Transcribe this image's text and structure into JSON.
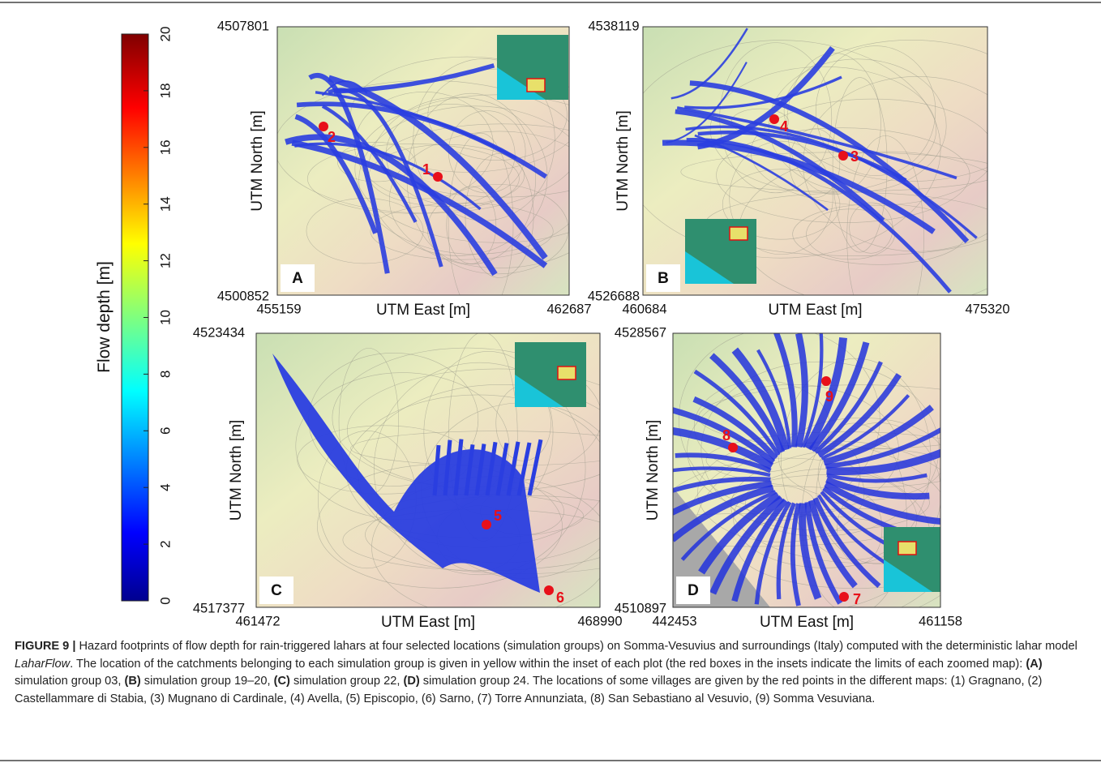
{
  "colorbar": {
    "label": "Flow depth [m]",
    "lim": [
      0,
      20
    ],
    "ticks": [
      0,
      2,
      4,
      6,
      8,
      10,
      12,
      14,
      16,
      18,
      20
    ]
  },
  "panels": [
    {
      "letter": "A",
      "x_label": "UTM East [m]",
      "y_label": "UTM North [m]",
      "x_min": 455159,
      "x_max": 462687,
      "y_min": 4500852,
      "y_max": 4507801,
      "points": [
        "1",
        "2"
      ]
    },
    {
      "letter": "B",
      "x_label": "UTM East [m]",
      "y_label": "UTM North [m]",
      "x_min": 460684,
      "x_max": 475320,
      "y_min": 4526688,
      "y_max": 4538119,
      "points": [
        "4",
        "3"
      ]
    },
    {
      "letter": "C",
      "x_label": "UTM East [m]",
      "y_label": "UTM North [m]",
      "x_min": 461472,
      "x_max": 468990,
      "y_min": 4517377,
      "y_max": 4523434,
      "points": [
        "5",
        "6"
      ]
    },
    {
      "letter": "D",
      "x_label": "UTM East [m]",
      "y_label": "UTM North [m]",
      "x_min": 442453,
      "x_max": 461158,
      "y_min": 4510897,
      "y_max": 4528567,
      "points": [
        "9",
        "8",
        "7"
      ]
    }
  ],
  "caption": [
    {
      "text": "FIGURE 9 |",
      "style": "bold"
    },
    {
      "text": " Hazard footprints of flow depth for rain-triggered lahars at four selected locations (simulation groups) on Somma-Vesuvius and surroundings (Italy) computed with the deterministic lahar model ",
      "style": "normal"
    },
    {
      "text": "LaharFlow",
      "style": "italic"
    },
    {
      "text": ". The location of the catchments belonging to each simulation group is given in yellow within the inset of each plot (the red boxes in the insets indicate the limits of each zoomed map): ",
      "style": "normal"
    },
    {
      "text": "(A)",
      "style": "bold"
    },
    {
      "text": " simulation group 03, ",
      "style": "normal"
    },
    {
      "text": "(B)",
      "style": "bold"
    },
    {
      "text": " simulation group 19–20, ",
      "style": "normal"
    },
    {
      "text": "(C)",
      "style": "bold"
    },
    {
      "text": " simulation group 22, ",
      "style": "normal"
    },
    {
      "text": "(D)",
      "style": "bold"
    },
    {
      "text": " simulation group 24. The locations of some villages are given by the red points in the different maps: (1) Gragnano, (2) Castellammare di Stabia, (3) Mugnano di Cardinale, (4) Avella, (5) Episcopio, (6) Sarno, (7) Torre Annunziata, (8) San Sebastiano al Vesuvio, (9) Somma Vesuviana.",
      "style": "normal"
    }
  ]
}
